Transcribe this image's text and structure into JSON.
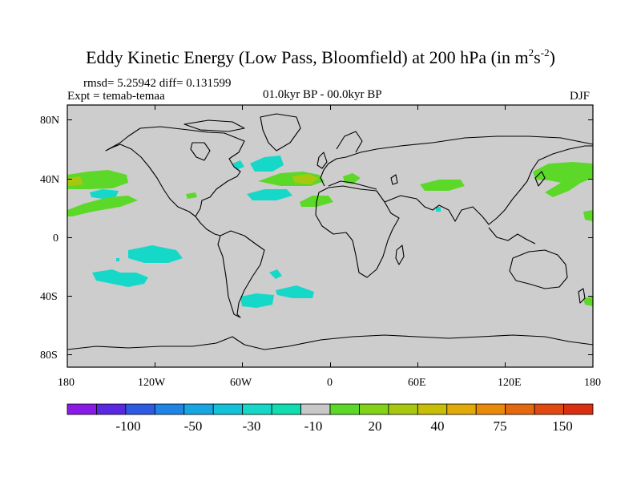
{
  "title": {
    "main": "Eddy Kinetic Energy (Low Pass, Bloomfield) at 200 hPa (in m",
    "sup1": "2",
    "mid": "s",
    "sup2": "-2",
    "end": ")"
  },
  "stats": "rmsd= 5.25942 diff= 0.131599",
  "expt": "Expt = temab-temaa",
  "period": "01.0kyr BP - 00.0kyr BP",
  "season": "DJF",
  "lat_ticks": [
    "80N",
    "40N",
    "0",
    "40S",
    "80S"
  ],
  "lon_ticks": [
    "180",
    "120W",
    "60W",
    "0",
    "60E",
    "120E",
    "180"
  ],
  "colorbar": {
    "labels": [
      "-100",
      "-50",
      "-30",
      "-10",
      "20",
      "40",
      "75",
      "150"
    ],
    "colors": [
      "#8a1be6",
      "#5a28e0",
      "#2f5ae2",
      "#1f84e4",
      "#18a6e2",
      "#12c2d8",
      "#16d8c8",
      "#10ddb0",
      "#c8c8c8",
      "#5cd828",
      "#82d218",
      "#a8c810",
      "#c8be08",
      "#e0aa08",
      "#ea8a0a",
      "#e4680e",
      "#e04a10",
      "#d83010"
    ]
  },
  "colors": {
    "ocean": "#cdcdcd",
    "coast": "#000000"
  }
}
